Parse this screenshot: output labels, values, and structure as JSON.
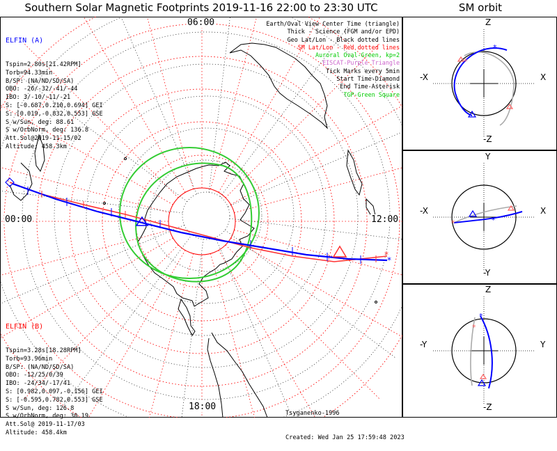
{
  "title": "Southern Solar Magnetic Footprints 2019-11-16 22:00 to 23:30 UTC",
  "sm_orbit_title": "SM orbit",
  "mlt_labels": {
    "top": "06:00",
    "left": "00:00",
    "right": "12:00",
    "bottom": "18:00"
  },
  "elfin_a": {
    "name": "ELFIN (A)",
    "color": "#0000ff",
    "lines": [
      "Tspin=2.80s[21.42RPM]",
      "Torb=94.33min",
      "B/SP: (NA/ND/SD/SA)",
      "OBO: -26/-32/-41/-44",
      "IBO: 3/-10/-11/-21",
      "S: [-0.687,0.210,0.694] GEI",
      "S: [0.019,-0.832,0.553] GSE",
      "S w/Sun, deg: 88.61",
      "S w/OrbNorm, deg: 136.8",
      "Att.Sol@2019-11-15/02",
      "Altitude: 458.3km"
    ]
  },
  "elfin_b": {
    "name": "ELFIN (B)",
    "color": "#ff0000",
    "lines": [
      "Tspin=3.28s[18.28RPM]",
      "Torb=93.96min",
      "B/SP: (NA/ND/SD/SA)",
      "OBO: -12/25/0/39",
      "IBO: -24/34/-17/41",
      "S: [0.982,0.097,-0.156] GEI",
      "S: [-0.595,0.782,0.553] GSE",
      "S w/Sun, deg: 126.8",
      "S w/OrbNorm, deg: 30.19",
      "Att.Sol@ 2019-11-17/03",
      "Altitude: 458.4km"
    ]
  },
  "legend": [
    {
      "text": "Earth/Oval View Center Time (triangle)",
      "color": "#000000"
    },
    {
      "text": "Thick - Science (FGM and/or EPD)",
      "color": "#000000"
    },
    {
      "text": "Geo Lat/Lon - Black dotted lines",
      "color": "#000000"
    },
    {
      "text": "SM Lat/Lon - Red dotted lines",
      "color": "#ff0000"
    },
    {
      "text": "Auroral Oval-Green, kp=2",
      "color": "#00cc00"
    },
    {
      "text": "EISCAT-Purple Triangle",
      "color": "#cc66cc"
    },
    {
      "text": "Tick Marks every 5min",
      "color": "#000000"
    },
    {
      "text": "Start Time-Diamond",
      "color": "#000000"
    },
    {
      "text": "End Time-Asterisk",
      "color": "#000000"
    },
    {
      "text": "TGP-Green Square",
      "color": "#00cc00"
    }
  ],
  "footer": {
    "model": "Tsyganenko-1996",
    "created": "Created: Wed Jan 25 17:59:48 2023"
  },
  "orbit_panels": [
    {
      "top": "Z",
      "bottom": "-Z",
      "left": "-X",
      "right": "X"
    },
    {
      "top": "Y",
      "bottom": "-Y",
      "left": "-X",
      "right": "X"
    },
    {
      "top": "Z",
      "bottom": "-Z",
      "left": "-Y",
      "right": "Y"
    }
  ],
  "chart_data": {
    "type": "scatter",
    "projection": "south-polar SM footprints",
    "mlt_axis_hours": [
      0,
      6,
      12,
      18
    ],
    "sm_lat_rings_deg": [
      -80,
      -70,
      -60,
      -50,
      -40,
      -30,
      -20
    ],
    "auroral_oval_kp": 2,
    "series": [
      {
        "name": "ELFIN (A)",
        "color": "#0000ff"
      },
      {
        "name": "ELFIN (B)",
        "color": "#ff0000"
      }
    ]
  }
}
